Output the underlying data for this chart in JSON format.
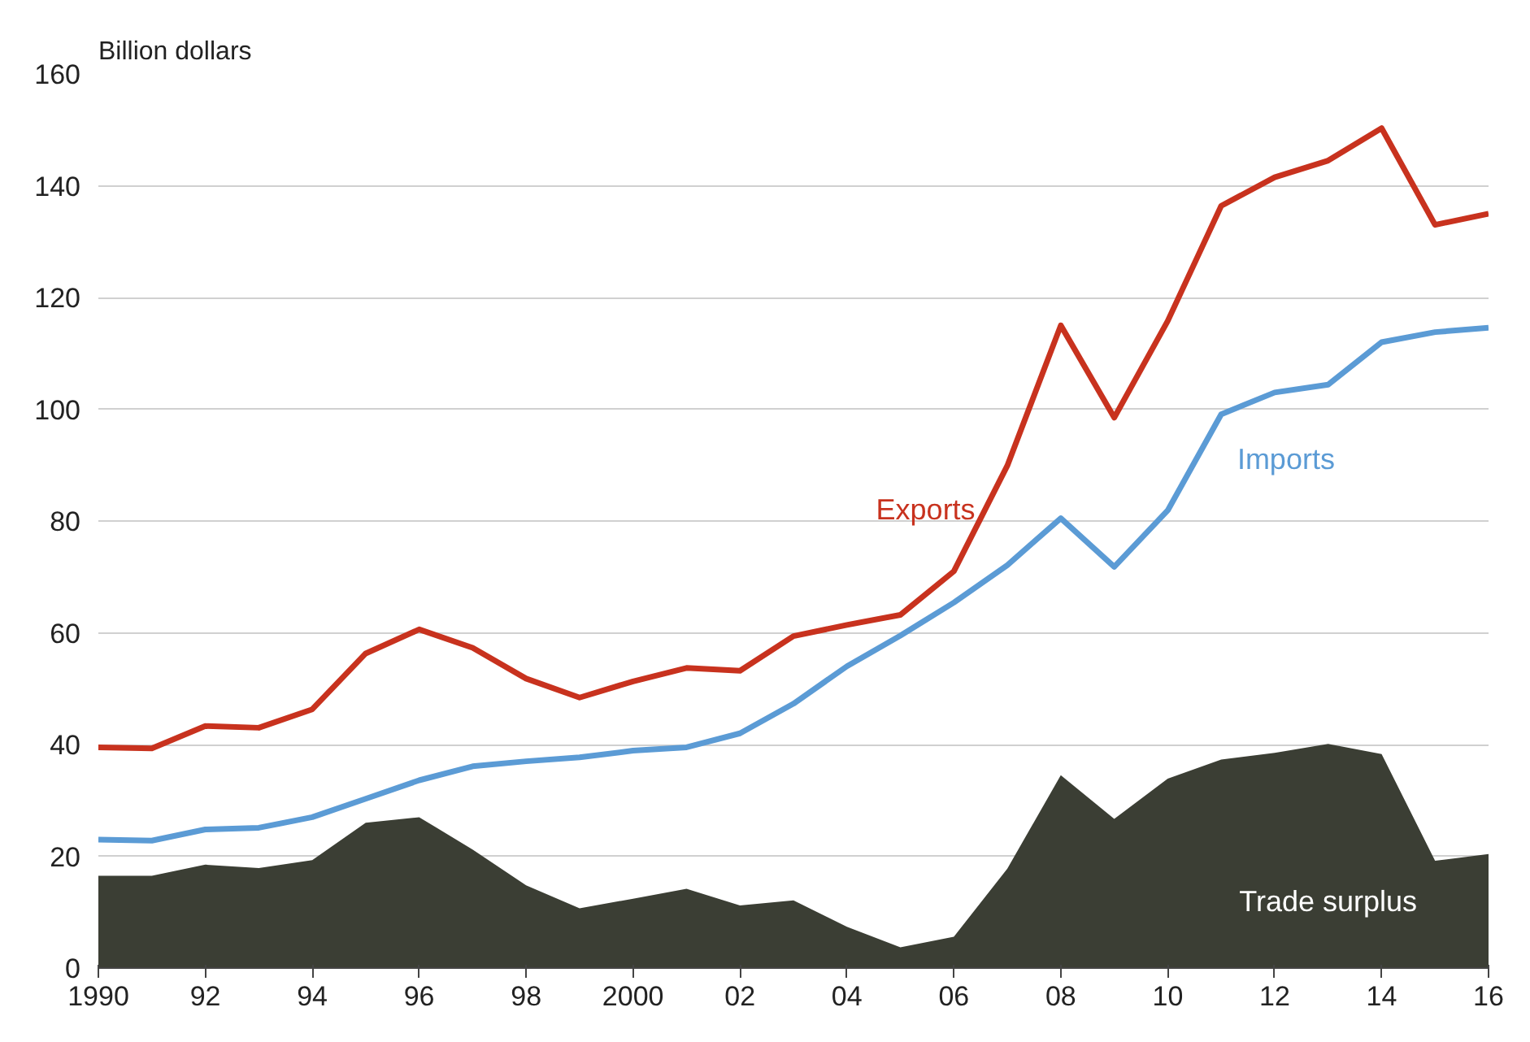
{
  "chart_data": {
    "type": "line",
    "ylabel": "Billion dollars",
    "x": [
      1990,
      1991,
      1992,
      1993,
      1994,
      1995,
      1996,
      1997,
      1998,
      1999,
      2000,
      2001,
      2002,
      2003,
      2004,
      2005,
      2006,
      2007,
      2008,
      2009,
      2010,
      2011,
      2012,
      2013,
      2014,
      2015,
      2016
    ],
    "series": [
      {
        "name": "Trade surplus",
        "type": "area",
        "color": "#3b3e34",
        "values": [
          16.5,
          16.5,
          18.5,
          17.9,
          19.3,
          26,
          27,
          21.2,
          14.8,
          10.7,
          12.4,
          14.2,
          11.2,
          12.1,
          7.4,
          3.7,
          5.6,
          17.8,
          34.5,
          26.7,
          33.9,
          37.3,
          38.5,
          40.1,
          38.3,
          19.2,
          20.4
        ]
      },
      {
        "name": "Imports",
        "type": "line",
        "color": "#5b9bd5",
        "values": [
          23,
          22.8,
          24.8,
          25.1,
          27,
          30.3,
          33.6,
          36.1,
          37,
          37.7,
          38.9,
          39.5,
          42,
          47.3,
          54,
          59.5,
          65.4,
          72.1,
          80.5,
          71.8,
          81.9,
          99.1,
          103,
          104.4,
          112,
          113.8,
          114.6
        ]
      },
      {
        "name": "Exports",
        "type": "line",
        "color": "#c8321e",
        "values": [
          39.5,
          39.3,
          43.3,
          43,
          46.3,
          56.3,
          60.6,
          57.3,
          51.8,
          48.4,
          51.3,
          53.7,
          53.2,
          59.4,
          61.4,
          63.2,
          71,
          89.9,
          115,
          98.5,
          115.8,
          136.4,
          141.5,
          144.5,
          150.3,
          133,
          135
        ]
      }
    ],
    "xlim": [
      1990,
      2016
    ],
    "ylim": [
      0,
      160
    ],
    "xticks": [
      1990,
      {
        "value": 1992,
        "label": "92"
      },
      {
        "value": 1994,
        "label": "94"
      },
      {
        "value": 1996,
        "label": "96"
      },
      {
        "value": 1998,
        "label": "98"
      },
      2000,
      {
        "value": 2002,
        "label": "02"
      },
      {
        "value": 2004,
        "label": "04"
      },
      {
        "value": 2006,
        "label": "06"
      },
      {
        "value": 2008,
        "label": "08"
      },
      {
        "value": 2010,
        "label": "10"
      },
      {
        "value": 2012,
        "label": "12"
      },
      {
        "value": 2014,
        "label": "14"
      },
      {
        "value": 2016,
        "label": "16"
      }
    ],
    "yticks": [
      0,
      20,
      40,
      60,
      80,
      100,
      120,
      140,
      160
    ],
    "grid": "y",
    "line_style": "solid",
    "marker": "none"
  }
}
